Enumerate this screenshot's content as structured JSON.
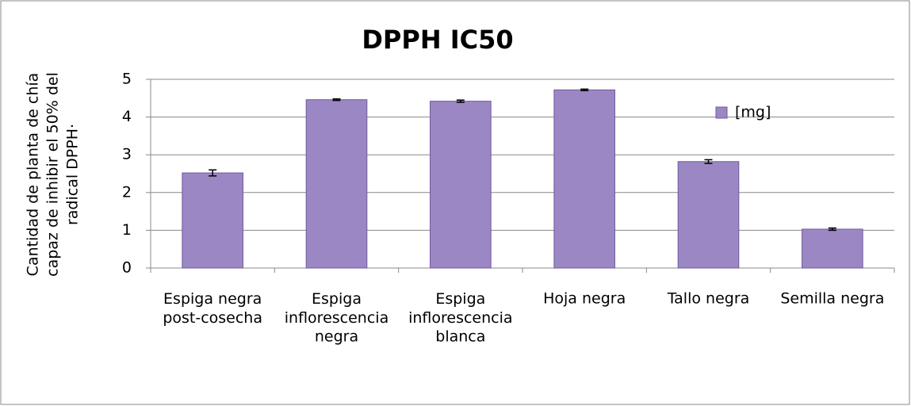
{
  "chart_data": {
    "type": "bar",
    "title": "DPPH IC50",
    "y_label": [
      "Cantidad de planta de chía",
      "capaz de inhibir el 50% del",
      "radical DPPH·"
    ],
    "categories": [
      "Espiga negra\npost-cosecha",
      "Espiga\ninflorescencia\nnegra",
      "Espiga\ninflorescencia\nblanca",
      "Hoja negra",
      "Tallo negra",
      "Semilla negra"
    ],
    "series": [
      {
        "name": "[mg]",
        "color": "#9b87c4",
        "values": [
          2.52,
          4.46,
          4.42,
          4.72,
          2.82,
          1.03
        ],
        "errors": [
          0.08,
          0.02,
          0.03,
          0.02,
          0.05,
          0.03
        ]
      }
    ],
    "ylim": [
      0,
      5
    ],
    "yticks": [
      0,
      1,
      2,
      3,
      4,
      5
    ],
    "grid": true,
    "legend": "top-right"
  }
}
